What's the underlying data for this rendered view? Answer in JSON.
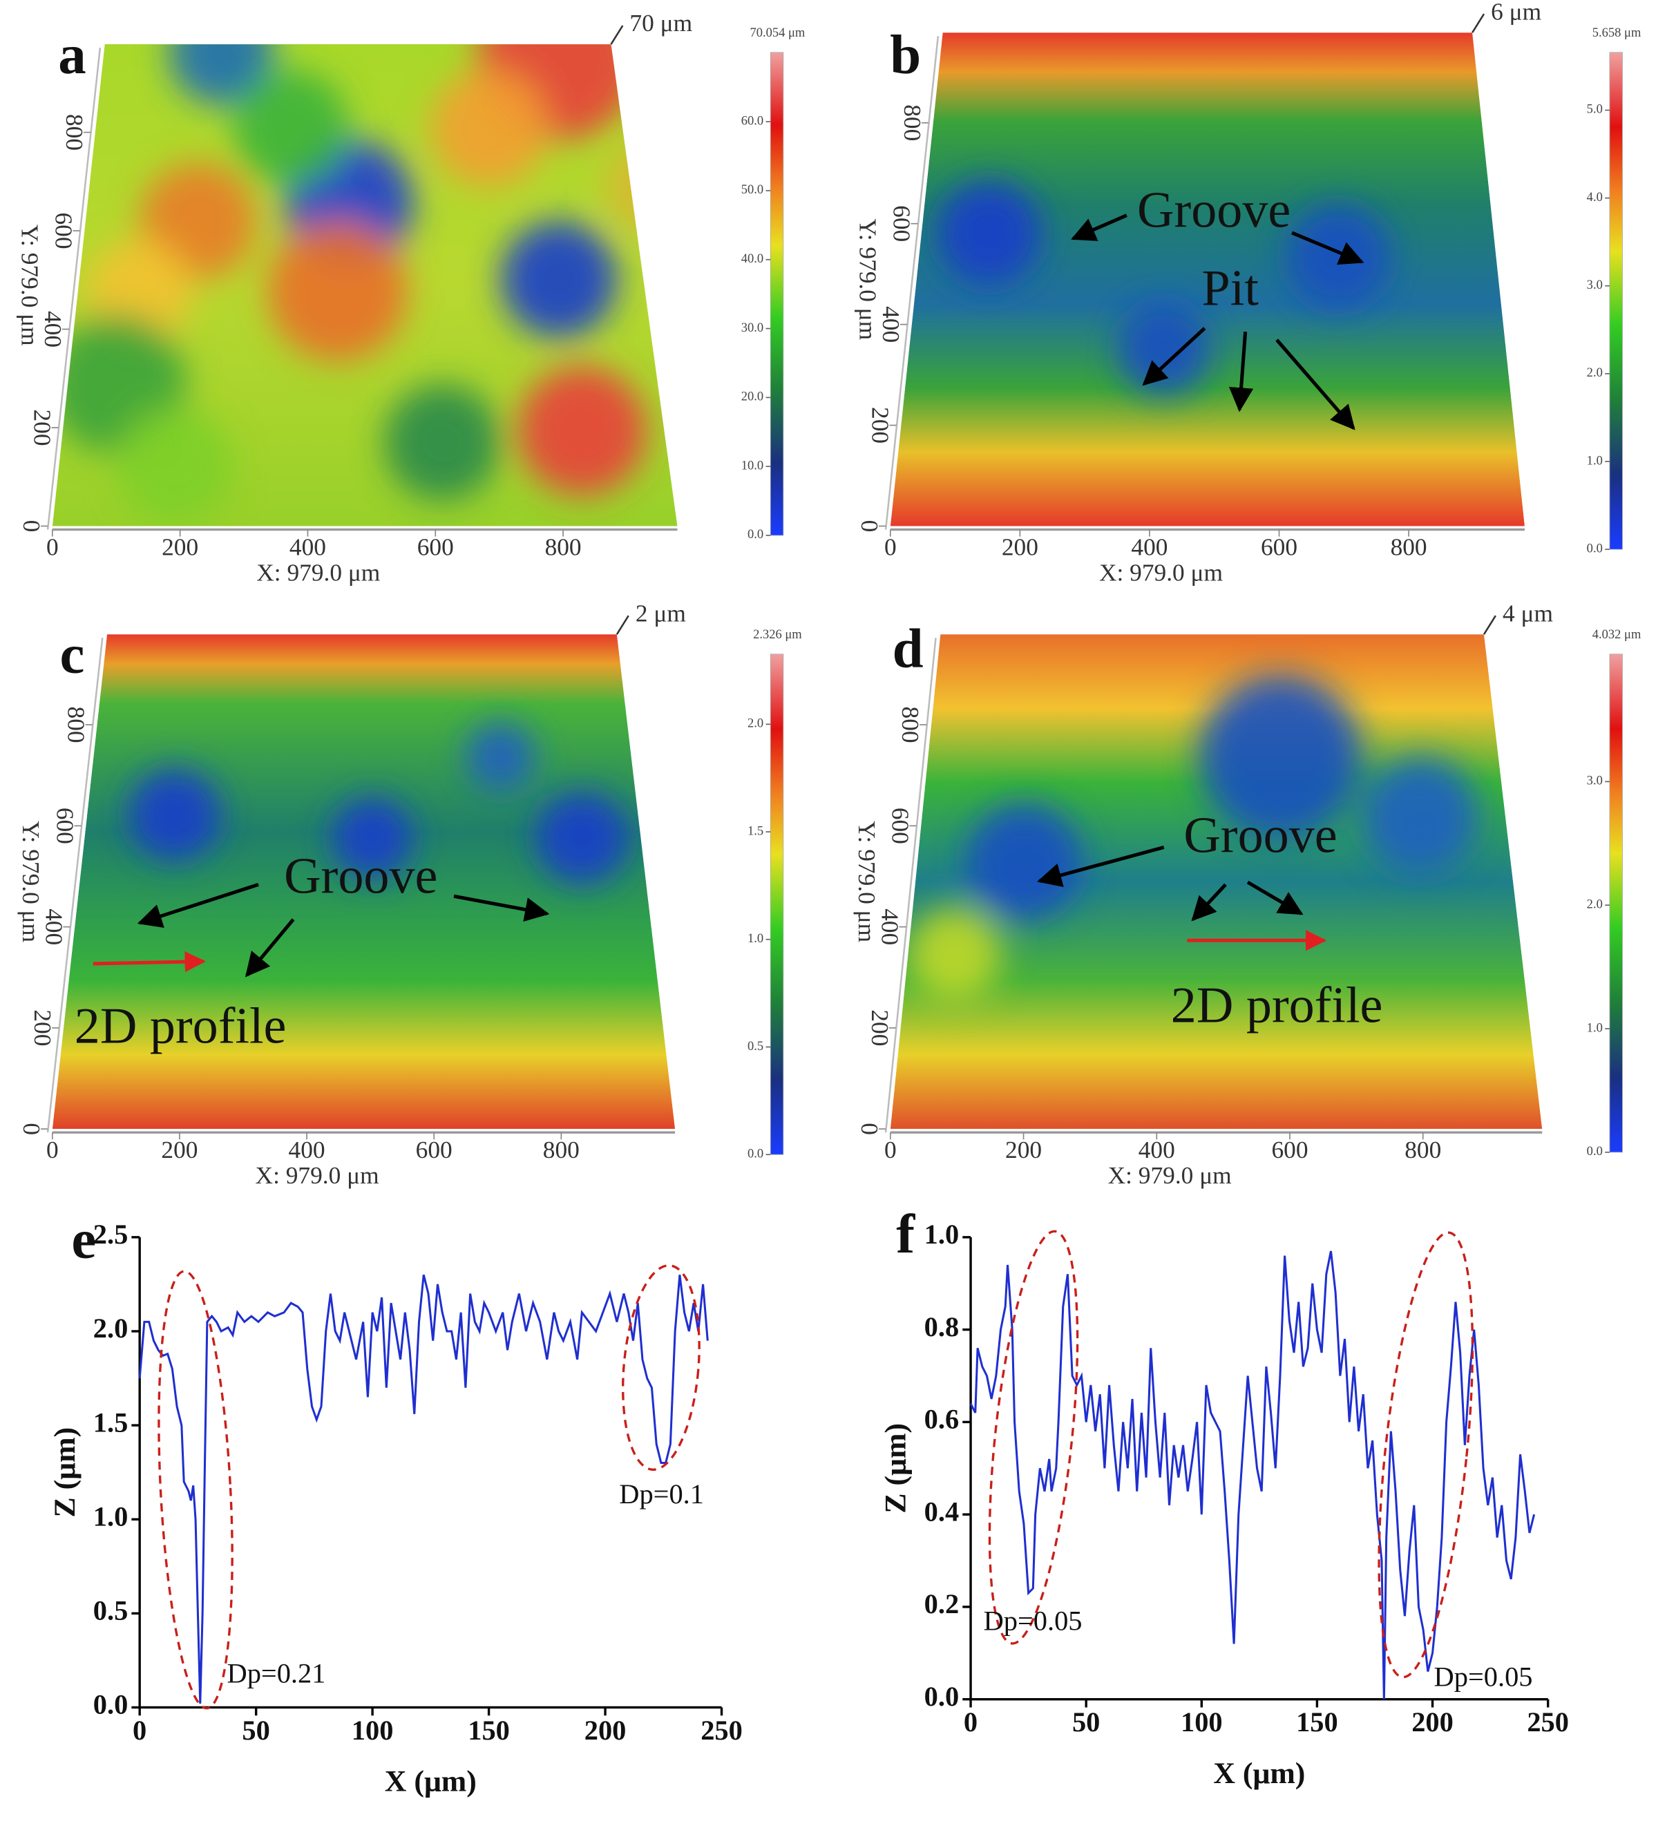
{
  "panels": [
    {
      "label": "a",
      "scale_label": "70 μm",
      "colorbar": {
        "max_label": "70.054 μm",
        "lim": [
          0,
          70.054
        ],
        "ticks": [
          {
            "value": 0,
            "label": "0.0"
          },
          {
            "value": 10,
            "label": "10.0"
          },
          {
            "value": 20,
            "label": "20.0"
          },
          {
            "value": 30,
            "label": "30.0"
          },
          {
            "value": 40,
            "label": "40.0"
          },
          {
            "value": 50,
            "label": "50.0"
          },
          {
            "value": 60,
            "label": "60.0"
          }
        ]
      },
      "x_axis": {
        "label": "X: 979.0 μm",
        "lim": [
          0,
          979
        ],
        "ticks": [
          0,
          200,
          400,
          600,
          800
        ]
      },
      "y_axis": {
        "label": "Y: 979.0 μm",
        "lim": [
          0,
          979
        ],
        "ticks": [
          0,
          200,
          400,
          600,
          800
        ]
      },
      "annotations": []
    },
    {
      "label": "b",
      "scale_label": "6 μm",
      "colorbar": {
        "max_label": "5.658 μm",
        "lim": [
          0,
          5.658
        ],
        "ticks": [
          {
            "value": 0,
            "label": "0.0"
          },
          {
            "value": 1,
            "label": "1.0"
          },
          {
            "value": 2,
            "label": "2.0"
          },
          {
            "value": 3,
            "label": "3.0"
          },
          {
            "value": 4,
            "label": "4.0"
          },
          {
            "value": 5,
            "label": "5.0"
          }
        ]
      },
      "x_axis": {
        "label": "X: 979.0 μm",
        "lim": [
          0,
          979
        ],
        "ticks": [
          0,
          200,
          400,
          600,
          800
        ]
      },
      "y_axis": {
        "label": "Y: 979.0 μm",
        "lim": [
          0,
          979
        ],
        "ticks": [
          0,
          200,
          400,
          600,
          800
        ]
      },
      "annotations": [
        "Groove",
        "Pit"
      ]
    },
    {
      "label": "c",
      "scale_label": "2 μm",
      "colorbar": {
        "max_label": "2.326 μm",
        "lim": [
          0,
          2.326
        ],
        "ticks": [
          {
            "value": 0,
            "label": "0.0"
          },
          0.5,
          {
            "value": 1,
            "label": "1.0"
          },
          1.5,
          {
            "value": 2,
            "label": "2.0"
          }
        ]
      },
      "x_axis": {
        "label": "X: 979.0 μm",
        "lim": [
          0,
          979
        ],
        "ticks": [
          0,
          200,
          400,
          600,
          800
        ]
      },
      "y_axis": {
        "label": "Y: 979.0 μm",
        "lim": [
          0,
          979
        ],
        "ticks": [
          0,
          200,
          400,
          600,
          800
        ]
      },
      "annotations": [
        "Groove",
        "2D profile"
      ]
    },
    {
      "label": "d",
      "scale_label": "4 μm",
      "colorbar": {
        "max_label": "4.032 μm",
        "lim": [
          0,
          4.032
        ],
        "ticks": [
          {
            "value": 0,
            "label": "0.0"
          },
          {
            "value": 1,
            "label": "1.0"
          },
          {
            "value": 2,
            "label": "2.0"
          },
          {
            "value": 3,
            "label": "3.0"
          }
        ]
      },
      "x_axis": {
        "label": "X: 979.0 μm",
        "lim": [
          0,
          979
        ],
        "ticks": [
          0,
          200,
          400,
          600,
          800
        ]
      },
      "y_axis": {
        "label": "Y: 979.0 μm",
        "lim": [
          0,
          979
        ],
        "ticks": [
          0,
          200,
          400,
          600,
          800
        ]
      },
      "annotations": [
        "Groove",
        "2D profile"
      ]
    }
  ],
  "chart_data": [
    {
      "type": "line",
      "panel_label": "e",
      "x_label": "X (μm)",
      "y_label": "Z (μm)",
      "color": "#1f2fd0",
      "xlim": [
        0,
        250
      ],
      "ylim": [
        0,
        2.5
      ],
      "xticks": [
        0,
        50,
        100,
        150,
        200,
        250
      ],
      "yticks": [
        {
          "value": 0,
          "label": "0.0"
        },
        0.5,
        {
          "value": 1,
          "label": "1.0"
        },
        1.5,
        {
          "value": 2,
          "label": "2.0"
        },
        2.5
      ],
      "annotations": [
        "Dp=0.21",
        "Dp=0.1"
      ],
      "x": [
        0,
        2,
        4,
        6,
        8,
        10,
        12,
        14,
        16,
        18,
        19,
        21,
        22,
        23,
        24,
        25,
        26,
        27,
        28,
        29,
        31,
        33,
        35,
        38,
        40,
        42,
        45,
        48,
        51,
        55,
        58,
        62,
        65,
        68,
        70,
        72,
        74,
        76,
        78,
        80,
        82,
        84,
        86,
        88,
        90,
        93,
        96,
        98,
        100,
        102,
        104,
        106,
        108,
        110,
        112,
        114,
        116,
        118,
        120,
        122,
        124,
        126,
        128,
        130,
        132,
        134,
        136,
        138,
        140,
        142,
        144,
        146,
        148,
        150,
        153,
        156,
        158,
        160,
        163,
        166,
        169,
        172,
        175,
        178,
        180,
        182,
        185,
        188,
        190,
        193,
        196,
        199,
        202,
        205,
        208,
        210,
        212,
        214,
        216,
        218,
        220,
        222,
        224,
        226,
        228,
        230,
        232,
        234,
        236,
        238,
        240,
        242,
        244
      ],
      "values": [
        1.75,
        2.05,
        2.05,
        1.95,
        1.9,
        1.87,
        1.88,
        1.8,
        1.6,
        1.5,
        1.2,
        1.15,
        1.1,
        1.18,
        1.0,
        0.5,
        0.02,
        0.5,
        1.3,
        2.05,
        2.08,
        2.05,
        2.0,
        2.02,
        1.98,
        2.1,
        2.05,
        2.08,
        2.05,
        2.1,
        2.08,
        2.1,
        2.15,
        2.13,
        2.1,
        1.8,
        1.6,
        1.53,
        1.6,
        2.0,
        2.2,
        2.0,
        1.95,
        2.1,
        2.0,
        1.85,
        2.05,
        1.65,
        2.1,
        2.0,
        2.18,
        1.7,
        2.15,
        2.0,
        1.85,
        2.1,
        1.9,
        1.56,
        2.05,
        2.3,
        2.2,
        1.95,
        2.25,
        2.1,
        2.0,
        2.0,
        1.85,
        2.1,
        1.7,
        2.2,
        2.05,
        2.0,
        2.15,
        2.1,
        2.0,
        2.1,
        1.9,
        2.05,
        2.2,
        2.0,
        2.15,
        2.05,
        1.85,
        2.1,
        2.0,
        1.95,
        2.05,
        1.85,
        2.1,
        2.05,
        2.0,
        2.1,
        2.2,
        2.05,
        2.2,
        2.1,
        1.95,
        2.15,
        1.85,
        1.75,
        1.7,
        1.4,
        1.3,
        1.3,
        1.4,
        2.0,
        2.3,
        2.1,
        2.0,
        2.15,
        2.0,
        2.25,
        1.95
      ]
    },
    {
      "type": "line",
      "panel_label": "f",
      "x_label": "X (μm)",
      "y_label": "Z (μm)",
      "color": "#1f2fd0",
      "xlim": [
        0,
        250
      ],
      "ylim": [
        0,
        1
      ],
      "xticks": [
        0,
        50,
        100,
        150,
        200,
        250
      ],
      "yticks": [
        {
          "value": 0,
          "label": "0.0"
        },
        0.2,
        0.4,
        0.6,
        0.8,
        {
          "value": 1,
          "label": "1.0"
        }
      ],
      "annotations": [
        "Dp=0.05",
        "Dp=0.05"
      ],
      "x": [
        0,
        2,
        3,
        5,
        7,
        9,
        11,
        13,
        15,
        16,
        18,
        19,
        21,
        23,
        25,
        27,
        28,
        30,
        32,
        34,
        35,
        37,
        38,
        40,
        42,
        44,
        46,
        48,
        50,
        52,
        54,
        56,
        58,
        60,
        62,
        64,
        66,
        68,
        70,
        72,
        74,
        76,
        78,
        80,
        82,
        84,
        86,
        88,
        90,
        92,
        94,
        96,
        98,
        100,
        102,
        104,
        106,
        108,
        110,
        112,
        114,
        116,
        118,
        120,
        122,
        124,
        126,
        128,
        130,
        132,
        134,
        136,
        138,
        140,
        142,
        144,
        146,
        148,
        150,
        152,
        154,
        156,
        158,
        160,
        162,
        164,
        166,
        168,
        170,
        172,
        174,
        176,
        178,
        179,
        180,
        182,
        184,
        186,
        188,
        190,
        192,
        194,
        196,
        198,
        200,
        202,
        204,
        206,
        208,
        210,
        212,
        214,
        216,
        218,
        220,
        222,
        224,
        226,
        228,
        230,
        232,
        234,
        236,
        238,
        240,
        242,
        244
      ],
      "values": [
        0.64,
        0.62,
        0.76,
        0.72,
        0.7,
        0.65,
        0.7,
        0.8,
        0.85,
        0.94,
        0.8,
        0.6,
        0.45,
        0.38,
        0.23,
        0.24,
        0.4,
        0.5,
        0.45,
        0.52,
        0.45,
        0.5,
        0.6,
        0.85,
        0.92,
        0.7,
        0.68,
        0.7,
        0.6,
        0.68,
        0.58,
        0.66,
        0.5,
        0.68,
        0.55,
        0.45,
        0.6,
        0.5,
        0.65,
        0.45,
        0.62,
        0.48,
        0.76,
        0.6,
        0.48,
        0.62,
        0.42,
        0.55,
        0.48,
        0.55,
        0.45,
        0.52,
        0.6,
        0.4,
        0.68,
        0.62,
        0.6,
        0.58,
        0.45,
        0.3,
        0.12,
        0.4,
        0.55,
        0.7,
        0.6,
        0.5,
        0.45,
        0.72,
        0.62,
        0.5,
        0.7,
        0.96,
        0.82,
        0.75,
        0.86,
        0.72,
        0.76,
        0.9,
        0.8,
        0.75,
        0.92,
        0.97,
        0.88,
        0.7,
        0.78,
        0.6,
        0.72,
        0.58,
        0.66,
        0.5,
        0.56,
        0.4,
        0.3,
        0.0,
        0.35,
        0.58,
        0.45,
        0.28,
        0.18,
        0.32,
        0.42,
        0.2,
        0.15,
        0.06,
        0.1,
        0.2,
        0.35,
        0.6,
        0.72,
        0.86,
        0.75,
        0.55,
        0.7,
        0.8,
        0.68,
        0.5,
        0.42,
        0.48,
        0.35,
        0.42,
        0.3,
        0.26,
        0.35,
        0.53,
        0.45,
        0.36,
        0.4
      ]
    }
  ]
}
